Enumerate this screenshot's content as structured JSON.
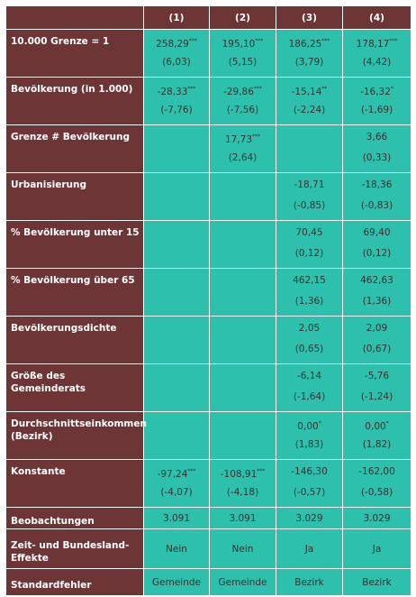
{
  "table": {
    "header": [
      "(1)",
      "(2)",
      "(3)",
      "(4)"
    ],
    "rows": [
      {
        "label": "10.000 Grenze = 1",
        "coef": [
          {
            "value": "258,29",
            "stars": "***"
          },
          {
            "value": "195,10",
            "stars": "***"
          },
          {
            "value": "186,25",
            "stars": "***"
          },
          {
            "value": "178,17",
            "stars": "***"
          }
        ],
        "se": [
          "(6,03)",
          "(5,15)",
          "(3,79)",
          "(4,42)"
        ]
      },
      {
        "label": "Bevölkerung (in 1.000)",
        "coef": [
          {
            "value": "-28,33",
            "stars": "***"
          },
          {
            "value": "-29,86",
            "stars": "***"
          },
          {
            "value": "-15,14",
            "stars": "**"
          },
          {
            "value": "-16,32",
            "stars": "*"
          }
        ],
        "se": [
          "(-7,76)",
          "(-7,56)",
          "(-2,24)",
          "(-1,69)"
        ]
      },
      {
        "label": "Grenze # Bevölkerung",
        "coef": [
          null,
          {
            "value": "17,73",
            "stars": "***"
          },
          null,
          {
            "value": "3,66"
          }
        ],
        "se": [
          null,
          "(2,64)",
          null,
          "(0,33)"
        ]
      },
      {
        "label": "Urbanisierung",
        "coef": [
          null,
          null,
          {
            "value": "-18,71"
          },
          {
            "value": "-18,36"
          }
        ],
        "se": [
          null,
          null,
          "(-0,85)",
          "(-0,83)"
        ]
      },
      {
        "label": "% Bevölkerung unter 15",
        "coef": [
          null,
          null,
          {
            "value": "70,45"
          },
          {
            "value": "69,40"
          }
        ],
        "se": [
          null,
          null,
          "(0,12)",
          "(0,12)"
        ]
      },
      {
        "label": "% Bevölkerung über 65",
        "coef": [
          null,
          null,
          {
            "value": "462,15"
          },
          {
            "value": "462,63"
          }
        ],
        "se": [
          null,
          null,
          "(1,36)",
          "(1,36)"
        ]
      },
      {
        "label": "Bevölkerungsdichte",
        "coef": [
          null,
          null,
          {
            "value": "2,05"
          },
          {
            "value": "2,09"
          }
        ],
        "se": [
          null,
          null,
          "(0,65)",
          "(0,67)"
        ]
      },
      {
        "label": "Größe des Gemeinderats",
        "coef": [
          null,
          null,
          {
            "value": "-6,14"
          },
          {
            "value": "-5,76"
          }
        ],
        "se": [
          null,
          null,
          "(-1,64)",
          "(-1,24)"
        ]
      },
      {
        "label": "Durchschnittseinkommen (Bezirk)",
        "coef": [
          null,
          null,
          {
            "value": "0,00",
            "stars": "*"
          },
          {
            "value": "0,00",
            "stars": "*"
          }
        ],
        "se": [
          null,
          null,
          "(1,83)",
          "(1,82)"
        ]
      },
      {
        "label": "Konstante",
        "coef": [
          {
            "value": "-97,24",
            "stars": "***"
          },
          {
            "value": "-108,91",
            "stars": "***"
          },
          {
            "value": "-146,30"
          },
          {
            "value": "-162,00"
          }
        ],
        "se": [
          "(-4,07)",
          "(-4,18)",
          "(-0,57)",
          "(-0,58)"
        ]
      }
    ],
    "footer": [
      {
        "label": "Beobachtungen",
        "values": [
          "3.091",
          "3.091",
          "3.029",
          "3.029"
        ]
      },
      {
        "label": "Zeit- und Bundesland-Effekte",
        "values": [
          "Nein",
          "Nein",
          "Ja",
          "Ja"
        ]
      },
      {
        "label": "Standardfehler",
        "values": [
          "Gemeinde",
          "Gemeinde",
          "Bezirk",
          "Bezirk"
        ]
      }
    ]
  }
}
